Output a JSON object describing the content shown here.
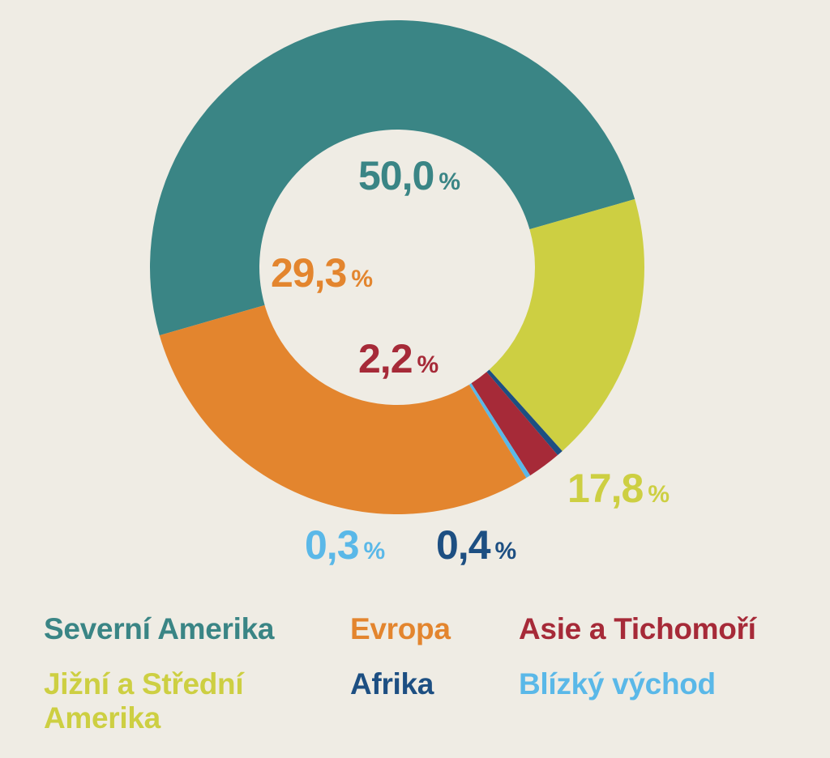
{
  "chart_data": {
    "type": "pie",
    "donut": true,
    "unit": "%",
    "series": [
      {
        "name": "Severní Amerika",
        "value": 50.0,
        "label": "50,0",
        "color": "#3a8585"
      },
      {
        "name": "Jižní a Střední Amerika",
        "value": 17.8,
        "label": "17,8",
        "color": "#cdcf42"
      },
      {
        "name": "Afrika",
        "value": 0.4,
        "label": "0,4",
        "color": "#1d4f82"
      },
      {
        "name": "Asie a Tichomoří",
        "value": 2.2,
        "label": "2,2",
        "color": "#a62a38"
      },
      {
        "name": "Blízký východ",
        "value": 0.3,
        "label": "0,3",
        "color": "#5ab8e8"
      },
      {
        "name": "Evropa",
        "value": 29.3,
        "label": "29,3",
        "color": "#e3852e"
      }
    ],
    "legend": [
      {
        "text": "Severní Amerika",
        "color": "#3a8585"
      },
      {
        "text": "Evropa",
        "color": "#e3852e"
      },
      {
        "text": "Asie a Tichomoří",
        "color": "#a62a38"
      },
      {
        "text": "Jižní a Střední Amerika",
        "color": "#cdcf42"
      },
      {
        "text": "Afrika",
        "color": "#1d4f82"
      },
      {
        "text": "Blízký východ",
        "color": "#5ab8e8"
      }
    ],
    "legend_placement": "bottom"
  }
}
